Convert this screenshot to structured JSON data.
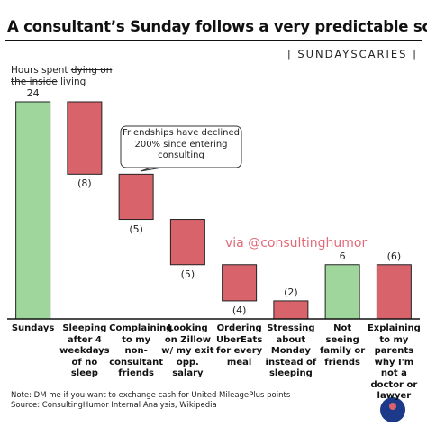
{
  "chart_data": {
    "type": "waterfall",
    "title": "A consultant’s Sunday follows a very predictable schedule",
    "tag": "| SUNDAYSCARIES |",
    "y_label": {
      "prefix": "Hours spent",
      "struck": "dying on the inside",
      "suffix": "living"
    },
    "categories": [
      "Sundays",
      "Sleeping after 4 weekdays of no sleep",
      "Complaining to my non-consultant friends",
      "Looking on Zillow w/ my exit opp. salary",
      "Ordering UberEats for every meal",
      "Stressing about Monday instead of sleeping",
      "Not seeing family or friends",
      "Explaining to my parents why I'm not a doctor or lawyer"
    ],
    "values": [
      24,
      -8,
      -5,
      -5,
      -4,
      -2,
      6,
      -6
    ],
    "value_labels": [
      "24",
      "(8)",
      "(5)",
      "(5)",
      "(4)",
      "(2)",
      "6",
      "(6)"
    ],
    "increase_color": "#9fd69b",
    "decrease_color": "#d9636b",
    "annotation": "Friendships have declined 200% since entering consulting",
    "watermark": "via @consultinghumor",
    "notes": [
      "Note: DM me if you want to exchange cash for United MileagePlus points",
      "Source: ConsultingHumor Internal Analysis, Wikipedia"
    ]
  }
}
